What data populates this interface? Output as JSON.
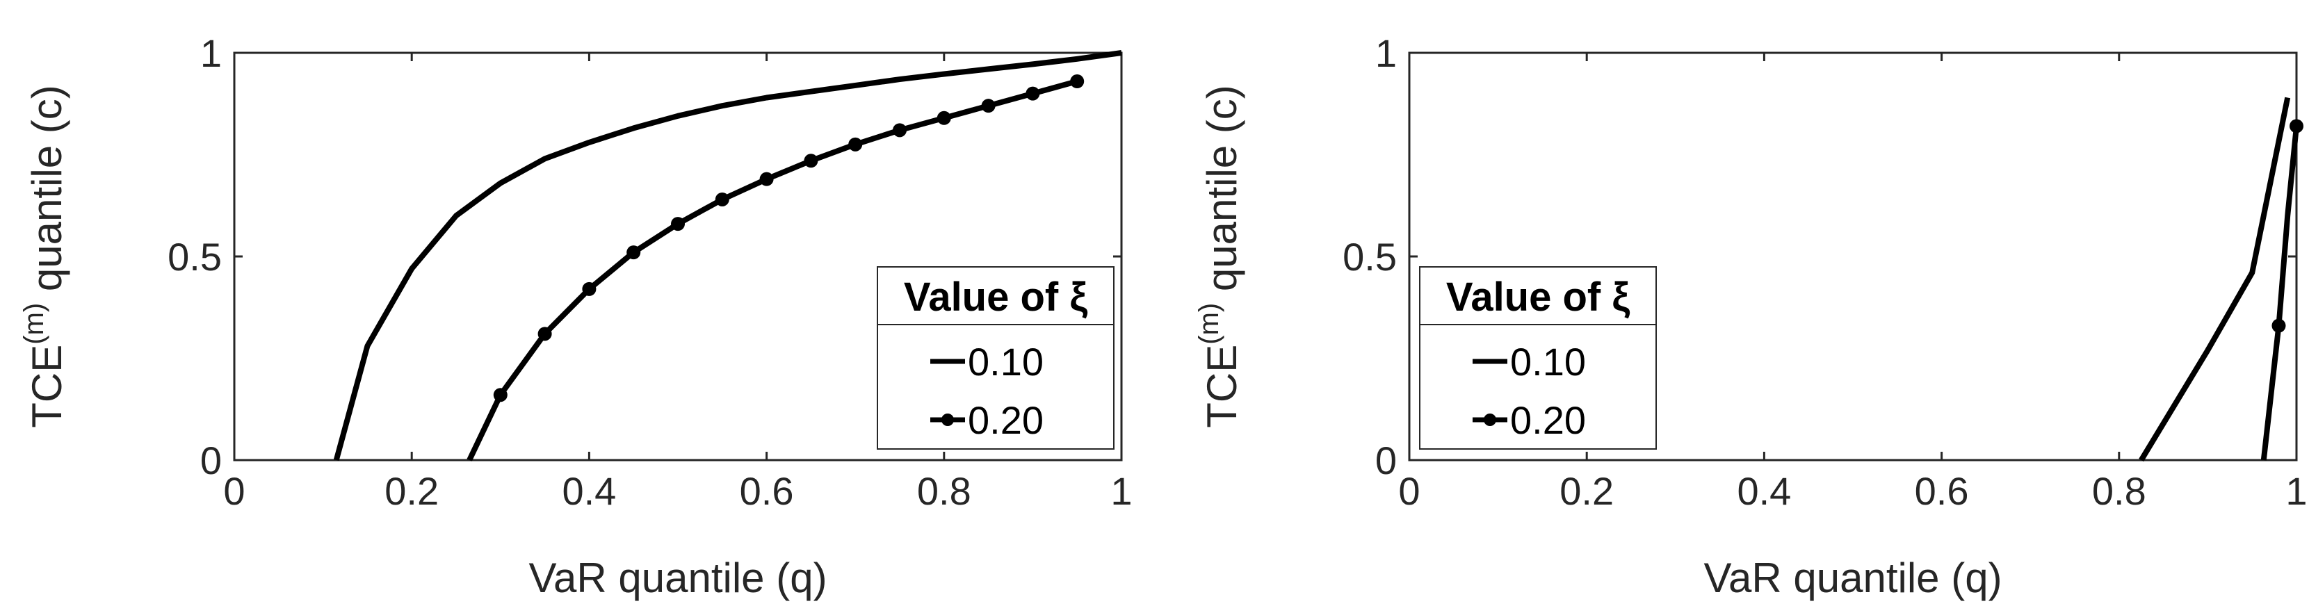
{
  "chart_data": [
    {
      "type": "line",
      "xlabel": "VaR quantile (q)",
      "ylabel_prefix": "TCE",
      "ylabel_superscript": "(m)",
      "ylabel_suffix": " quantile (c)",
      "xlim": [
        0,
        1
      ],
      "ylim": [
        0,
        1
      ],
      "xticks": [
        "0",
        "0.2",
        "0.4",
        "0.6",
        "0.8",
        "1"
      ],
      "yticks": [
        "0",
        "0.5",
        "1"
      ],
      "legend": {
        "title": "Value of ξ",
        "position": "bottom-right"
      },
      "series": [
        {
          "name": "0.10",
          "marker": "none",
          "x": [
            0.115,
            0.15,
            0.2,
            0.25,
            0.3,
            0.35,
            0.4,
            0.45,
            0.5,
            0.55,
            0.6,
            0.65,
            0.7,
            0.75,
            0.8,
            0.85,
            0.9,
            0.95,
            1.0
          ],
          "y": [
            0.0,
            0.28,
            0.47,
            0.6,
            0.68,
            0.74,
            0.78,
            0.815,
            0.845,
            0.87,
            0.89,
            0.905,
            0.92,
            0.935,
            0.948,
            0.96,
            0.972,
            0.985,
            1.0
          ]
        },
        {
          "name": "0.20",
          "marker": "dot",
          "x": [
            0.265,
            0.3,
            0.35,
            0.4,
            0.45,
            0.5,
            0.55,
            0.6,
            0.65,
            0.7,
            0.75,
            0.8,
            0.85,
            0.9,
            0.95
          ],
          "y": [
            0.0,
            0.16,
            0.31,
            0.42,
            0.51,
            0.58,
            0.64,
            0.69,
            0.735,
            0.775,
            0.81,
            0.84,
            0.87,
            0.9,
            0.93
          ],
          "marker_start_index": 1
        }
      ]
    },
    {
      "type": "line",
      "xlabel": "VaR quantile (q)",
      "ylabel_prefix": "TCE",
      "ylabel_superscript": "(m)",
      "ylabel_suffix": " quantile (c)",
      "xlim": [
        0,
        1
      ],
      "ylim": [
        0,
        1
      ],
      "xticks": [
        "0",
        "0.2",
        "0.4",
        "0.6",
        "0.8",
        "1"
      ],
      "yticks": [
        "0",
        "0.5",
        "1"
      ],
      "legend": {
        "title": "Value of ξ",
        "position": "bottom-left"
      },
      "series": [
        {
          "name": "0.10",
          "marker": "none",
          "x": [
            0.825,
            0.9,
            0.95,
            0.99
          ],
          "y": [
            0.0,
            0.27,
            0.46,
            0.89
          ]
        },
        {
          "name": "0.20",
          "marker": "dot",
          "x": [
            0.963,
            0.98,
            0.99,
            1.0
          ],
          "y": [
            0.0,
            0.33,
            0.6,
            0.82
          ],
          "marker_indices": [
            1,
            3
          ]
        }
      ]
    }
  ]
}
